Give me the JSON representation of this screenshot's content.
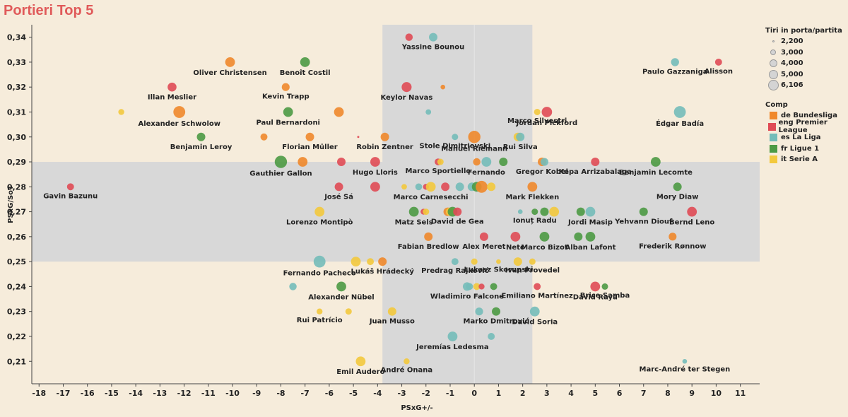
{
  "title": "Portieri Top 5",
  "legend_size": {
    "title": "Tiri in porta/partita",
    "items": [
      "2,200",
      "3,000",
      "4,000",
      "5,000",
      "6,106"
    ]
  },
  "legend_comp": {
    "title": "Comp",
    "items": [
      {
        "label": "de Bundesliga",
        "color": "#f0882b"
      },
      {
        "label": "eng Premier League",
        "color": "#e04b55"
      },
      {
        "label": "es La Liga",
        "color": "#74bdb9"
      },
      {
        "label": "fr Ligue 1",
        "color": "#4c9a44"
      },
      {
        "label": "it Serie A",
        "color": "#f3c93d"
      }
    ]
  },
  "chart_data": {
    "type": "scatter",
    "title": "Portieri Top 5",
    "xlabel": "PSxG+/-",
    "ylabel": "PSxG/SoT",
    "xlim": [
      -18.3,
      11.8
    ],
    "ylim": [
      0.201,
      0.345
    ],
    "x_ticks": [
      "-18",
      "-17",
      "-16",
      "-15",
      "-14",
      "-13",
      "-12",
      "-11",
      "-10",
      "-9",
      "-8",
      "-7",
      "-6",
      "-5",
      "-4",
      "-3",
      "-2",
      "-1",
      "0",
      "1",
      "2",
      "3",
      "4",
      "5",
      "6",
      "7",
      "8",
      "9",
      "10",
      "11"
    ],
    "y_ticks": [
      "0,21",
      "0,22",
      "0,23",
      "0,24",
      "0,25",
      "0,26",
      "0,27",
      "0,28",
      "0,29",
      "0,30",
      "0,31",
      "0,32",
      "0,33",
      "0,34"
    ],
    "x_band": [
      -3.8,
      2.4
    ],
    "y_band": [
      0.25,
      0.29
    ],
    "size_key": "shots on target per match",
    "points": [
      {
        "name": "Yassine Bounou",
        "x": -1.7,
        "y": 0.34,
        "comp": "es La Liga",
        "s": 4.0
      },
      {
        "name": "",
        "x": -2.7,
        "y": 0.34,
        "comp": "eng Premier League",
        "s": 3.5
      },
      {
        "name": "Alisson",
        "x": 10.1,
        "y": 0.33,
        "comp": "eng Premier League",
        "s": 3.3
      },
      {
        "name": "Paulo Gazzaniga",
        "x": 8.3,
        "y": 0.33,
        "comp": "es La Liga",
        "s": 3.8
      },
      {
        "name": "Oliver Christensen",
        "x": -10.1,
        "y": 0.33,
        "comp": "de Bundesliga",
        "s": 4.6
      },
      {
        "name": "Benoît Costil",
        "x": -7.0,
        "y": 0.33,
        "comp": "fr Ligue 1",
        "s": 4.6
      },
      {
        "name": "Illan Meslier",
        "x": -12.5,
        "y": 0.32,
        "comp": "eng Premier League",
        "s": 4.2
      },
      {
        "name": "Kevin Trapp",
        "x": -7.8,
        "y": 0.32,
        "comp": "de Bundesliga",
        "s": 3.7
      },
      {
        "name": "Keylor Navas",
        "x": -2.8,
        "y": 0.32,
        "comp": "eng Premier League",
        "s": 4.7
      },
      {
        "name": "",
        "x": -1.3,
        "y": 0.32,
        "comp": "de Bundesliga",
        "s": 2.2
      },
      {
        "name": "",
        "x": -14.6,
        "y": 0.31,
        "comp": "it Serie A",
        "s": 2.8
      },
      {
        "name": "Alexander Schwolow",
        "x": -12.2,
        "y": 0.31,
        "comp": "de Bundesliga",
        "s": 5.6
      },
      {
        "name": "Paul Bernardoni",
        "x": -7.7,
        "y": 0.31,
        "comp": "fr Ligue 1",
        "s": 4.6
      },
      {
        "name": "",
        "x": -5.6,
        "y": 0.31,
        "comp": "de Bundesliga",
        "s": 4.6
      },
      {
        "name": "",
        "x": -1.9,
        "y": 0.31,
        "comp": "es La Liga",
        "s": 2.6
      },
      {
        "name": "Marco Silvestri",
        "x": 2.6,
        "y": 0.31,
        "comp": "it Serie A",
        "s": 3.0
      },
      {
        "name": "Jordan Pickford",
        "x": 3.0,
        "y": 0.31,
        "comp": "eng Premier League",
        "s": 4.9
      },
      {
        "name": "Édgar Badía",
        "x": 8.5,
        "y": 0.31,
        "comp": "es La Liga",
        "s": 5.6
      },
      {
        "name": "Benjamin Leroy",
        "x": -11.3,
        "y": 0.3,
        "comp": "fr Ligue 1",
        "s": 4.0
      },
      {
        "name": "",
        "x": -8.7,
        "y": 0.3,
        "comp": "de Bundesliga",
        "s": 3.3
      },
      {
        "name": "Florian Müller",
        "x": -6.8,
        "y": 0.3,
        "comp": "de Bundesliga",
        "s": 4.0
      },
      {
        "name": "",
        "x": -4.8,
        "y": 0.3,
        "comp": "eng Premier League",
        "s": 1.0
      },
      {
        "name": "Robin Zentner",
        "x": -3.7,
        "y": 0.3,
        "comp": "de Bundesliga",
        "s": 4.0
      },
      {
        "name": "Stole Dimitrievski",
        "x": -0.8,
        "y": 0.3,
        "comp": "es La Liga",
        "s": 3.0
      },
      {
        "name": "Manuel Riemann",
        "x": 0.0,
        "y": 0.3,
        "comp": "de Bundesliga",
        "s": 5.8
      },
      {
        "name": "",
        "x": 1.8,
        "y": 0.3,
        "comp": "it Serie A",
        "s": 4.0
      },
      {
        "name": "Rui Silva",
        "x": 1.9,
        "y": 0.3,
        "comp": "es La Liga",
        "s": 4.0
      },
      {
        "name": "Gauthier Gallon",
        "x": -8.0,
        "y": 0.29,
        "comp": "fr Ligue 1",
        "s": 5.8
      },
      {
        "name": "",
        "x": -7.1,
        "y": 0.29,
        "comp": "de Bundesliga",
        "s": 4.6
      },
      {
        "name": "",
        "x": -5.5,
        "y": 0.29,
        "comp": "eng Premier League",
        "s": 4.0
      },
      {
        "name": "Hugo Lloris",
        "x": -4.1,
        "y": 0.29,
        "comp": "eng Premier League",
        "s": 4.6
      },
      {
        "name": "Marco Sportiello",
        "x": -1.5,
        "y": 0.29,
        "comp": "eng Premier League",
        "s": 3.2
      },
      {
        "name": "",
        "x": -1.4,
        "y": 0.29,
        "comp": "it Serie A",
        "s": 3.0
      },
      {
        "name": "",
        "x": 0.1,
        "y": 0.29,
        "comp": "de Bundesliga",
        "s": 3.5
      },
      {
        "name": "Fernando",
        "x": 0.5,
        "y": 0.29,
        "comp": "es La Liga",
        "s": 4.6
      },
      {
        "name": "",
        "x": 1.2,
        "y": 0.29,
        "comp": "fr Ligue 1",
        "s": 4.0
      },
      {
        "name": "Gregor Kobel",
        "x": 2.8,
        "y": 0.29,
        "comp": "de Bundesliga",
        "s": 4.0
      },
      {
        "name": "",
        "x": 2.9,
        "y": 0.29,
        "comp": "es La Liga",
        "s": 3.7
      },
      {
        "name": "Kepa Arrizabalaga",
        "x": 5.0,
        "y": 0.29,
        "comp": "eng Premier League",
        "s": 4.0
      },
      {
        "name": "Benjamin Lecomte",
        "x": 7.5,
        "y": 0.29,
        "comp": "fr Ligue 1",
        "s": 4.6
      },
      {
        "name": "Gavin Bazunu",
        "x": -16.7,
        "y": 0.28,
        "comp": "eng Premier League",
        "s": 3.3
      },
      {
        "name": "José Sá",
        "x": -5.6,
        "y": 0.28,
        "comp": "eng Premier League",
        "s": 4.0
      },
      {
        "name": "",
        "x": -4.1,
        "y": 0.28,
        "comp": "eng Premier League",
        "s": 4.6
      },
      {
        "name": "",
        "x": -2.9,
        "y": 0.28,
        "comp": "it Serie A",
        "s": 2.6
      },
      {
        "name": "",
        "x": -2.3,
        "y": 0.28,
        "comp": "es La Liga",
        "s": 3.2
      },
      {
        "name": "",
        "x": -2.0,
        "y": 0.28,
        "comp": "eng Premier League",
        "s": 2.8
      },
      {
        "name": "Marco Carnesecchi",
        "x": -1.8,
        "y": 0.28,
        "comp": "it Serie A",
        "s": 4.6
      },
      {
        "name": "",
        "x": -1.2,
        "y": 0.28,
        "comp": "eng Premier League",
        "s": 4.0
      },
      {
        "name": "",
        "x": -0.6,
        "y": 0.28,
        "comp": "es La Liga",
        "s": 4.0
      },
      {
        "name": "",
        "x": -0.1,
        "y": 0.28,
        "comp": "es La Liga",
        "s": 4.0
      },
      {
        "name": "",
        "x": 0.1,
        "y": 0.28,
        "comp": "fr Ligue 1",
        "s": 4.6
      },
      {
        "name": "",
        "x": 0.3,
        "y": 0.28,
        "comp": "de Bundesliga",
        "s": 5.6
      },
      {
        "name": "",
        "x": 0.7,
        "y": 0.28,
        "comp": "it Serie A",
        "s": 4.0
      },
      {
        "name": "Mark Flekken",
        "x": 2.4,
        "y": 0.28,
        "comp": "de Bundesliga",
        "s": 4.6
      },
      {
        "name": "Mory Diaw",
        "x": 8.4,
        "y": 0.28,
        "comp": "fr Ligue 1",
        "s": 4.0
      },
      {
        "name": "Lorenzo Montipò",
        "x": -6.4,
        "y": 0.27,
        "comp": "it Serie A",
        "s": 4.6
      },
      {
        "name": "Matz Sels",
        "x": -2.5,
        "y": 0.27,
        "comp": "fr Ligue 1",
        "s": 4.6
      },
      {
        "name": "",
        "x": -2.1,
        "y": 0.27,
        "comp": "eng Premier League",
        "s": 2.8
      },
      {
        "name": "",
        "x": -2.0,
        "y": 0.27,
        "comp": "it Serie A",
        "s": 3.0
      },
      {
        "name": "",
        "x": -1.1,
        "y": 0.27,
        "comp": "de Bundesliga",
        "s": 4.0
      },
      {
        "name": "",
        "x": -1.0,
        "y": 0.27,
        "comp": "it Serie A",
        "s": 4.0
      },
      {
        "name": "",
        "x": -0.9,
        "y": 0.27,
        "comp": "fr Ligue 1",
        "s": 4.6
      },
      {
        "name": "David de Gea",
        "x": -0.7,
        "y": 0.27,
        "comp": "eng Premier League",
        "s": 4.0
      },
      {
        "name": "",
        "x": 1.9,
        "y": 0.27,
        "comp": "es La Liga",
        "s": 2.2
      },
      {
        "name": "Ionuț Radu",
        "x": 2.5,
        "y": 0.27,
        "comp": "fr Ligue 1",
        "s": 3.0
      },
      {
        "name": "",
        "x": 2.9,
        "y": 0.27,
        "comp": "fr Ligue 1",
        "s": 4.0
      },
      {
        "name": "",
        "x": 3.3,
        "y": 0.27,
        "comp": "it Serie A",
        "s": 4.6
      },
      {
        "name": "",
        "x": 4.4,
        "y": 0.27,
        "comp": "fr Ligue 1",
        "s": 4.0
      },
      {
        "name": "Jordi Masip",
        "x": 4.8,
        "y": 0.27,
        "comp": "es La Liga",
        "s": 4.6
      },
      {
        "name": "Yehvann Diouf",
        "x": 7.0,
        "y": 0.27,
        "comp": "fr Ligue 1",
        "s": 4.0
      },
      {
        "name": "Bernd Leno",
        "x": 9.0,
        "y": 0.27,
        "comp": "eng Premier League",
        "s": 4.6
      },
      {
        "name": "Fabian Bredlow",
        "x": -1.9,
        "y": 0.26,
        "comp": "de Bundesliga",
        "s": 4.0
      },
      {
        "name": "Alex Meret",
        "x": 0.4,
        "y": 0.26,
        "comp": "eng Premier League",
        "s": 4.0
      },
      {
        "name": "Neto",
        "x": 1.7,
        "y": 0.26,
        "comp": "eng Premier League",
        "s": 4.6
      },
      {
        "name": "Marco Bizot",
        "x": 2.9,
        "y": 0.26,
        "comp": "fr Ligue 1",
        "s": 4.6
      },
      {
        "name": "",
        "x": 4.3,
        "y": 0.26,
        "comp": "fr Ligue 1",
        "s": 4.0
      },
      {
        "name": "Alban Lafont",
        "x": 4.8,
        "y": 0.26,
        "comp": "fr Ligue 1",
        "s": 4.6
      },
      {
        "name": "Frederik Rønnow",
        "x": 8.2,
        "y": 0.26,
        "comp": "de Bundesliga",
        "s": 3.7
      },
      {
        "name": "Fernando Pacheco",
        "x": -6.4,
        "y": 0.25,
        "comp": "es La Liga",
        "s": 5.6
      },
      {
        "name": "",
        "x": -4.9,
        "y": 0.25,
        "comp": "it Serie A",
        "s": 4.6
      },
      {
        "name": "",
        "x": -4.3,
        "y": 0.25,
        "comp": "it Serie A",
        "s": 3.3
      },
      {
        "name": "Lukáš Hrádecký",
        "x": -3.8,
        "y": 0.25,
        "comp": "de Bundesliga",
        "s": 4.0
      },
      {
        "name": "Predrag Rajković",
        "x": -0.8,
        "y": 0.25,
        "comp": "es La Liga",
        "s": 3.3
      },
      {
        "name": "",
        "x": 0.0,
        "y": 0.25,
        "comp": "it Serie A",
        "s": 3.0
      },
      {
        "name": "Łukasz Skorupski",
        "x": 1.0,
        "y": 0.25,
        "comp": "it Serie A",
        "s": 2.2
      },
      {
        "name": "",
        "x": 1.8,
        "y": 0.25,
        "comp": "it Serie A",
        "s": 4.0
      },
      {
        "name": "Ivan Provedel",
        "x": 2.4,
        "y": 0.25,
        "comp": "it Serie A",
        "s": 3.0
      },
      {
        "name": "Alexander Nübel",
        "x": -5.5,
        "y": 0.24,
        "comp": "fr Ligue 1",
        "s": 4.6
      },
      {
        "name": "",
        "x": -7.5,
        "y": 0.24,
        "comp": "es La Liga",
        "s": 3.5
      },
      {
        "name": "Wladimiro Falcone",
        "x": -0.3,
        "y": 0.24,
        "comp": "es La Liga",
        "s": 4.0
      },
      {
        "name": "",
        "x": -0.2,
        "y": 0.24,
        "comp": "es La Liga",
        "s": 3.3
      },
      {
        "name": "",
        "x": 0.1,
        "y": 0.24,
        "comp": "it Serie A",
        "s": 3.3
      },
      {
        "name": "",
        "x": 0.3,
        "y": 0.24,
        "comp": "eng Premier League",
        "s": 2.8
      },
      {
        "name": "",
        "x": 0.8,
        "y": 0.24,
        "comp": "fr Ligue 1",
        "s": 3.3
      },
      {
        "name": "Emiliano Martínez",
        "x": 2.6,
        "y": 0.24,
        "comp": "eng Premier League",
        "s": 3.3
      },
      {
        "name": "David Raya",
        "x": 5.0,
        "y": 0.24,
        "comp": "eng Premier League",
        "s": 4.6
      },
      {
        "name": "Brice Samba",
        "x": 5.4,
        "y": 0.24,
        "comp": "fr Ligue 1",
        "s": 3.0
      },
      {
        "name": "Rui Patrício",
        "x": -6.4,
        "y": 0.23,
        "comp": "it Serie A",
        "s": 2.8
      },
      {
        "name": "",
        "x": -5.2,
        "y": 0.23,
        "comp": "it Serie A",
        "s": 3.0
      },
      {
        "name": "Juan Musso",
        "x": -3.4,
        "y": 0.23,
        "comp": "it Serie A",
        "s": 4.0
      },
      {
        "name": "",
        "x": 0.2,
        "y": 0.23,
        "comp": "es La Liga",
        "s": 3.7
      },
      {
        "name": "Marko Dmitrović",
        "x": 0.9,
        "y": 0.23,
        "comp": "fr Ligue 1",
        "s": 4.0
      },
      {
        "name": "David Soria",
        "x": 2.5,
        "y": 0.23,
        "comp": "es La Liga",
        "s": 4.6
      },
      {
        "name": "Jeremías Ledesma",
        "x": -0.9,
        "y": 0.22,
        "comp": "es La Liga",
        "s": 4.6
      },
      {
        "name": "",
        "x": 0.7,
        "y": 0.22,
        "comp": "es La Liga",
        "s": 3.3
      },
      {
        "name": "Emil Audero",
        "x": -4.7,
        "y": 0.21,
        "comp": "it Serie A",
        "s": 4.6
      },
      {
        "name": "André Onana",
        "x": -2.8,
        "y": 0.21,
        "comp": "it Serie A",
        "s": 2.8
      },
      {
        "name": "Marc-André ter Stegen",
        "x": 8.7,
        "y": 0.21,
        "comp": "es La Liga",
        "s": 2.2
      }
    ]
  }
}
